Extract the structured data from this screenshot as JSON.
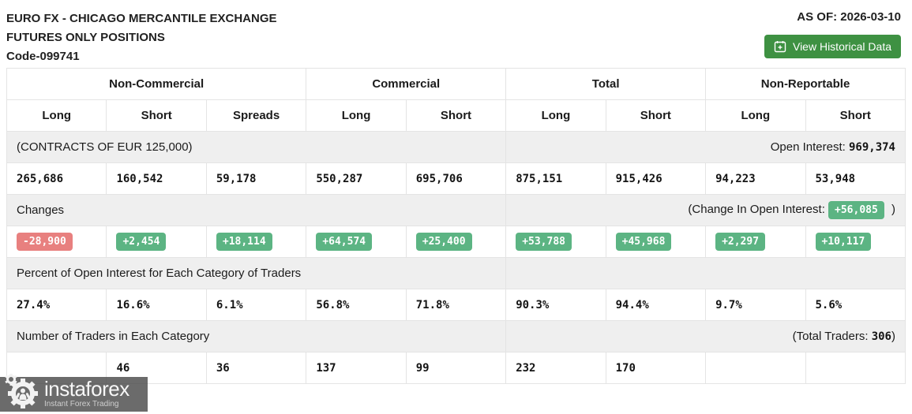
{
  "header": {
    "title_line1": "EURO FX - CHICAGO MERCANTILE EXCHANGE",
    "title_line2": "FUTURES ONLY POSITIONS",
    "title_line3": "Code-099741",
    "as_of": "AS OF: 2026-03-10",
    "button_label": "View Historical Data"
  },
  "table": {
    "groups": [
      {
        "label": "Non-Commercial",
        "span": 3
      },
      {
        "label": "Commercial",
        "span": 2
      },
      {
        "label": "Total",
        "span": 2
      },
      {
        "label": "Non-Reportable",
        "span": 2
      }
    ],
    "columns": [
      "Long",
      "Short",
      "Spreads",
      "Long",
      "Short",
      "Long",
      "Short",
      "Long",
      "Short"
    ],
    "contracts_label": "(CONTRACTS OF EUR 125,000)",
    "open_interest_label": "Open Interest:",
    "open_interest_value": "969,374",
    "positions": [
      "265,686",
      "160,542",
      "59,178",
      "550,287",
      "695,706",
      "875,151",
      "915,426",
      "94,223",
      "53,948"
    ],
    "changes_label": "Changes",
    "change_oi_prefix": "(Change In Open Interest:",
    "change_oi_value": "+56,085",
    "change_oi_suffix": ")",
    "changes": [
      "-28,900",
      "+2,454",
      "+18,114",
      "+64,574",
      "+25,400",
      "+53,788",
      "+45,968",
      "+2,297",
      "+10,117"
    ],
    "percent_label": "Percent of Open Interest for Each Category of Traders",
    "percents": [
      "27.4%",
      "16.6%",
      "6.1%",
      "56.8%",
      "71.8%",
      "90.3%",
      "94.4%",
      "9.7%",
      "5.6%"
    ],
    "traders_label": "Number of Traders in Each Category",
    "total_traders_prefix": "(Total Traders:",
    "total_traders_value": "306",
    "total_traders_suffix": ")",
    "traders": [
      "",
      "46",
      "36",
      "137",
      "99",
      "232",
      "170",
      "",
      ""
    ]
  },
  "watermark": {
    "brand": "instaforex",
    "tagline": "Instant Forex Trading"
  },
  "colors": {
    "accent-green": "#3e9142",
    "badge-green": "#5cb483",
    "badge-red": "#e8807f",
    "banner-bg": "#efefef",
    "border": "#e4e4e4",
    "text": "#1c1c1c",
    "watermark-bg": "rgba(74,74,74,0.82)"
  }
}
